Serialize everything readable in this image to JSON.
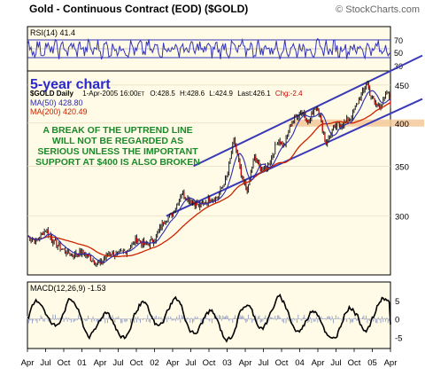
{
  "header": {
    "title": "Gold - Continuous Contract (EOD) ($GOLD)",
    "copyright": "© StockCharts.com"
  },
  "rsi_panel": {
    "label": "RSI(14) 41.4",
    "levels": [
      70,
      50,
      30
    ],
    "overbought": 70,
    "oversold": 30
  },
  "price_panel": {
    "info_line": {
      "symbol": "$GOLD Daily",
      "date": "1-Apr-2005 16:00",
      "tz": "ET",
      "open": "O:428.5",
      "high": "H:428.6",
      "low": "L:424.9",
      "last": "Last:426.1",
      "chg": "Chg:-2.4"
    },
    "ma50_label": "MA(50) 428.80",
    "ma200_label": "MA(200) 420.49",
    "chart_label": "5-year chart",
    "annotation": [
      "A BREAK OF THE UPTREND LINE",
      "WILL NOT BE REGARDED AS",
      "SERIOUS UNLESS THE IMPORTANT",
      "SUPPORT AT $400 IS ALSO BROKEN"
    ]
  },
  "macd_panel": {
    "label": "MACD(12,26,9) -1.53",
    "ticks": [
      "5",
      "0",
      "-5"
    ]
  },
  "x_axis": {
    "labels": [
      "Apr",
      "Jul",
      "Oct",
      "01",
      "Apr",
      "Jul",
      "Oct",
      "02",
      "Apr",
      "Jul",
      "Oct",
      "03",
      "Apr",
      "Jul",
      "Oct",
      "04",
      "Apr",
      "Jul",
      "Oct",
      "05",
      "Apr"
    ]
  },
  "colors": {
    "background": "#ffffff",
    "panel_fill": "#fffbe6",
    "trend_line": "#3a3ab8",
    "ma50": "#2a2ab0",
    "ma200": "#cc2200",
    "candle": "#1a1a1a",
    "rsi_line": "#3333bb",
    "macd_line": "#000000",
    "macd_hist": "#9aa4c8",
    "annotation_text": "#1a8a2a",
    "label_blue": "#2a2acc",
    "support_band": "#f5c89a"
  },
  "chart_data": [
    {
      "type": "line",
      "name": "RSI(14)",
      "ylim": [
        0,
        100
      ],
      "current": 41.4,
      "reference_levels": [
        30,
        50,
        70
      ],
      "xlim": [
        "2000-04-01",
        "2005-04-01"
      ]
    },
    {
      "type": "line",
      "title": "Gold - Continuous Contract (EOD) ($GOLD)",
      "ylabel": "",
      "scale": "log",
      "ylim": [
        250,
        470
      ],
      "yticks": [
        300,
        350,
        400,
        450
      ],
      "xlim": [
        "2000-04-01",
        "2005-04-01"
      ],
      "series": [
        {
          "name": "$GOLD",
          "x": [
            "2000-04-01",
            "2000-05-15",
            "2000-07-01",
            "2000-08-15",
            "2000-10-01",
            "2000-11-15",
            "2001-01-01",
            "2001-02-15",
            "2001-04-01",
            "2001-05-15",
            "2001-07-01",
            "2001-08-15",
            "2001-10-01",
            "2001-11-15",
            "2002-01-01",
            "2002-02-15",
            "2002-04-01",
            "2002-05-15",
            "2002-07-01",
            "2002-08-15",
            "2002-10-01",
            "2002-11-15",
            "2003-01-01",
            "2003-02-05",
            "2003-03-15",
            "2003-04-15",
            "2003-05-15",
            "2003-06-15",
            "2003-07-15",
            "2003-08-15",
            "2003-09-15",
            "2003-10-15",
            "2003-11-15",
            "2003-12-15",
            "2004-01-15",
            "2004-02-15",
            "2004-03-15",
            "2004-04-01",
            "2004-05-10",
            "2004-06-15",
            "2004-07-15",
            "2004-08-15",
            "2004-09-15",
            "2004-10-15",
            "2004-11-15",
            "2004-12-02",
            "2004-12-20",
            "2005-01-20",
            "2005-02-20",
            "2005-03-15",
            "2005-04-01"
          ],
          "values": [
            282,
            277,
            288,
            276,
            270,
            266,
            268,
            263,
            258,
            268,
            266,
            270,
            279,
            274,
            279,
            295,
            302,
            322,
            315,
            309,
            316,
            318,
            340,
            380,
            336,
            325,
            360,
            348,
            346,
            362,
            380,
            372,
            398,
            410,
            415,
            400,
            420,
            420,
            375,
            392,
            398,
            400,
            408,
            425,
            440,
            455,
            437,
            422,
            425,
            440,
            426
          ]
        },
        {
          "name": "MA(50)",
          "current": 428.8
        },
        {
          "name": "MA(200)",
          "current": 420.49
        }
      ],
      "trend_lines": [
        {
          "from": {
            "x": "2002-03-01",
            "y": 300
          },
          "to": {
            "x": "2005-04-01",
            "y": 412
          }
        },
        {
          "from": {
            "x": "2002-07-15",
            "y": 350
          },
          "to": {
            "x": "2005-04-01",
            "y": 470
          }
        }
      ],
      "support_level": 400
    },
    {
      "type": "line",
      "name": "MACD(12,26,9)",
      "current": -1.53,
      "ylim": [
        -8,
        10
      ],
      "yticks": [
        5,
        0,
        -5
      ],
      "xlim": [
        "2000-04-01",
        "2005-04-01"
      ]
    }
  ]
}
